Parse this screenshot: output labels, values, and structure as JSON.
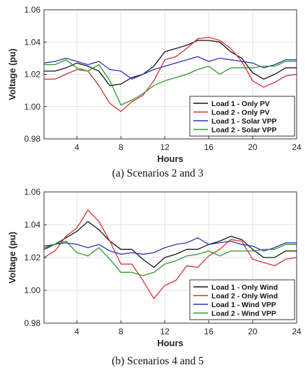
{
  "chart_data": [
    {
      "type": "line",
      "caption": "(a) Scenarios 2 and 3",
      "xlabel": "Hours",
      "ylabel": "Voltage (pu)",
      "xlim": [
        1,
        24
      ],
      "ylim": [
        0.98,
        1.06
      ],
      "xticks": [
        "4",
        "8",
        "12",
        "16",
        "20",
        "24"
      ],
      "yticks": [
        "0.98",
        "1.00",
        "1.02",
        "1.04",
        "1.06"
      ],
      "legend_position": "bottom-right",
      "x": [
        1,
        2,
        3,
        4,
        5,
        6,
        7,
        8,
        9,
        10,
        11,
        12,
        13,
        14,
        15,
        16,
        17,
        18,
        19,
        20,
        21,
        22,
        23,
        24
      ],
      "series": [
        {
          "name": "Load 1 - Only PV",
          "color": "#111111",
          "values": [
            1.022,
            1.022,
            1.024,
            1.027,
            1.025,
            1.022,
            1.013,
            1.014,
            1.018,
            1.02,
            1.025,
            1.034,
            1.036,
            1.038,
            1.041,
            1.041,
            1.04,
            1.034,
            1.03,
            1.021,
            1.017,
            1.02,
            1.024,
            1.024
          ]
        },
        {
          "name": "Load 2 - Only PV",
          "color": "#d62f2f",
          "values": [
            1.017,
            1.017,
            1.02,
            1.023,
            1.022,
            1.013,
            1.002,
            0.997,
            1.003,
            1.007,
            1.016,
            1.029,
            1.031,
            1.036,
            1.042,
            1.043,
            1.041,
            1.036,
            1.028,
            1.016,
            1.012,
            1.015,
            1.019,
            1.02
          ]
        },
        {
          "name": "Load 1 - Solar VPP",
          "color": "#2f2fb8",
          "values": [
            1.027,
            1.028,
            1.03,
            1.028,
            1.026,
            1.028,
            1.023,
            1.022,
            1.017,
            1.02,
            1.023,
            1.025,
            1.027,
            1.029,
            1.031,
            1.028,
            1.03,
            1.029,
            1.028,
            1.027,
            1.024,
            1.026,
            1.029,
            1.029
          ]
        },
        {
          "name": "Load 2 - Solar VPP",
          "color": "#2a9a2a",
          "values": [
            1.026,
            1.026,
            1.029,
            1.024,
            1.022,
            1.026,
            1.016,
            1.001,
            1.004,
            1.008,
            1.013,
            1.016,
            1.018,
            1.02,
            1.023,
            1.025,
            1.02,
            1.024,
            1.024,
            1.024,
            1.025,
            1.025,
            1.028,
            1.028
          ]
        }
      ]
    },
    {
      "type": "line",
      "caption": "(b) Scenarios 4 and 5",
      "xlabel": "Hours",
      "ylabel": "Voltage (pu)",
      "xlim": [
        1,
        24
      ],
      "ylim": [
        0.98,
        1.06
      ],
      "xticks": [
        "4",
        "8",
        "12",
        "16",
        "20",
        "24"
      ],
      "yticks": [
        "0.98",
        "1.00",
        "1.02",
        "1.04",
        "1.06"
      ],
      "legend_position": "bottom-right",
      "x": [
        1,
        2,
        3,
        4,
        5,
        6,
        7,
        8,
        9,
        10,
        11,
        12,
        13,
        14,
        15,
        16,
        17,
        18,
        19,
        20,
        21,
        22,
        23,
        24
      ],
      "series": [
        {
          "name": "Load 1 - Only Wind",
          "color": "#111111",
          "values": [
            1.025,
            1.028,
            1.032,
            1.036,
            1.042,
            1.037,
            1.03,
            1.025,
            1.025,
            1.019,
            1.014,
            1.02,
            1.022,
            1.025,
            1.025,
            1.028,
            1.03,
            1.033,
            1.031,
            1.025,
            1.02,
            1.02,
            1.024,
            1.024
          ]
        },
        {
          "name": "Load 2 - Only Wind",
          "color": "#d62f2f",
          "values": [
            1.02,
            1.024,
            1.033,
            1.038,
            1.049,
            1.042,
            1.03,
            1.016,
            1.016,
            1.006,
            0.995,
            1.003,
            1.006,
            1.015,
            1.014,
            1.021,
            1.025,
            1.031,
            1.03,
            1.019,
            1.017,
            1.015,
            1.019,
            1.02
          ]
        },
        {
          "name": "Load 1 - Wind VPP",
          "color": "#2f2fb8",
          "values": [
            1.027,
            1.028,
            1.029,
            1.028,
            1.026,
            1.028,
            1.024,
            1.022,
            1.023,
            1.022,
            1.023,
            1.026,
            1.028,
            1.029,
            1.032,
            1.028,
            1.029,
            1.03,
            1.028,
            1.027,
            1.024,
            1.026,
            1.029,
            1.029
          ]
        },
        {
          "name": "Load 2 - Wind VPP",
          "color": "#2a9a2a",
          "values": [
            1.026,
            1.028,
            1.03,
            1.023,
            1.021,
            1.026,
            1.019,
            1.011,
            1.011,
            1.009,
            1.011,
            1.016,
            1.018,
            1.021,
            1.022,
            1.024,
            1.021,
            1.024,
            1.024,
            1.024,
            1.025,
            1.025,
            1.028,
            1.028
          ]
        }
      ]
    }
  ]
}
